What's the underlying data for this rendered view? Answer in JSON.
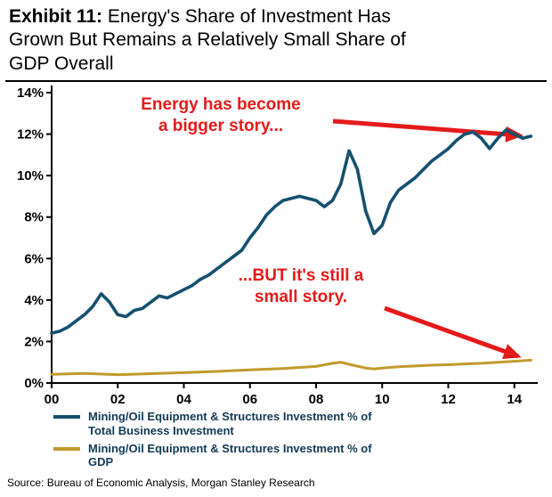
{
  "header": {
    "exhibit_label": "Exhibit 11:",
    "line1_rest": "  Energy's Share of Investment Has",
    "line2": "Grown But Remains a Relatively Small Share of",
    "line3": "GDP Overall"
  },
  "annotations": {
    "a1": {
      "lines": [
        "Energy has become",
        "a bigger story..."
      ]
    },
    "a2": {
      "lines": [
        "...BUT it's still a",
        "small story."
      ]
    }
  },
  "legend": [
    {
      "lines": [
        "Mining/Oil Equipment & Structures Investment % of",
        "Total Business Investment"
      ],
      "label": "Mining/Oil Equipment & Structures Investment % of Total Business Investment",
      "color": "#15506f"
    },
    {
      "lines": [
        "Mining/Oil Equipment & Structures Investment % of",
        "GDP"
      ],
      "label": "Mining/Oil Equipment & Structures Investment % of GDP",
      "color": "#c19a2b"
    }
  ],
  "source": "Source: Bureau of Economic Analysis, Morgan Stanley Research",
  "colors": {
    "blue": "#15506f",
    "gold": "#c19a2b",
    "red": "#e51a1a",
    "axis": "#000000"
  },
  "chart_data": {
    "type": "line",
    "title": "Energy's Share of Investment Has Grown But Remains a Relatively Small Share of GDP Overall",
    "xlabel": "",
    "ylabel": "",
    "grid": false,
    "legend_position": "bottom",
    "xlim": [
      2000,
      2014.6
    ],
    "ylim": [
      0,
      14
    ],
    "x_ticks": [
      "00",
      "02",
      "04",
      "06",
      "08",
      "10",
      "12",
      "14"
    ],
    "y_ticks": [
      "0%",
      "2%",
      "4%",
      "6%",
      "8%",
      "10%",
      "12%",
      "14%"
    ],
    "series": [
      {
        "name": "Mining/Oil Equipment & Structures Investment % of Total Business Investment",
        "color": "#15506f",
        "x": [
          2000,
          2000.25,
          2000.5,
          2000.75,
          2001,
          2001.25,
          2001.5,
          2001.75,
          2002,
          2002.25,
          2002.5,
          2002.75,
          2003,
          2003.25,
          2003.5,
          2003.75,
          2004,
          2004.25,
          2004.5,
          2004.75,
          2005,
          2005.25,
          2005.5,
          2005.75,
          2006,
          2006.25,
          2006.5,
          2006.75,
          2007,
          2007.25,
          2007.5,
          2007.75,
          2008,
          2008.25,
          2008.5,
          2008.75,
          2009,
          2009.25,
          2009.5,
          2009.75,
          2010,
          2010.25,
          2010.5,
          2010.75,
          2011,
          2011.25,
          2011.5,
          2011.75,
          2012,
          2012.25,
          2012.5,
          2012.75,
          2013,
          2013.25,
          2013.5,
          2013.75,
          2014,
          2014.25,
          2014.5
        ],
        "y": [
          2.4,
          2.5,
          2.7,
          3.0,
          3.3,
          3.7,
          4.3,
          3.9,
          3.3,
          3.2,
          3.5,
          3.6,
          3.9,
          4.2,
          4.1,
          4.3,
          4.5,
          4.7,
          5.0,
          5.2,
          5.5,
          5.8,
          6.1,
          6.4,
          7.0,
          7.5,
          8.1,
          8.5,
          8.8,
          8.9,
          9.0,
          8.9,
          8.8,
          8.5,
          8.8,
          9.6,
          11.2,
          10.3,
          8.3,
          7.2,
          7.6,
          8.7,
          9.3,
          9.6,
          9.9,
          10.3,
          10.7,
          11.0,
          11.3,
          11.7,
          12.0,
          12.1,
          11.8,
          11.3,
          11.8,
          12.2,
          12.0,
          11.8,
          11.9
        ]
      },
      {
        "name": "Mining/Oil Equipment & Structures Investment % of GDP",
        "color": "#c19a2b",
        "x": [
          2000,
          2001,
          2002,
          2003,
          2004,
          2005,
          2006,
          2007,
          2008,
          2008.5,
          2008.75,
          2009,
          2009.5,
          2009.75,
          2010,
          2010.5,
          2011,
          2011.5,
          2012,
          2012.5,
          2013,
          2013.5,
          2014,
          2014.5
        ],
        "y": [
          0.42,
          0.46,
          0.4,
          0.45,
          0.5,
          0.56,
          0.63,
          0.7,
          0.8,
          0.95,
          1.0,
          0.9,
          0.72,
          0.68,
          0.72,
          0.78,
          0.82,
          0.86,
          0.88,
          0.92,
          0.95,
          1.0,
          1.05,
          1.1
        ]
      }
    ]
  }
}
